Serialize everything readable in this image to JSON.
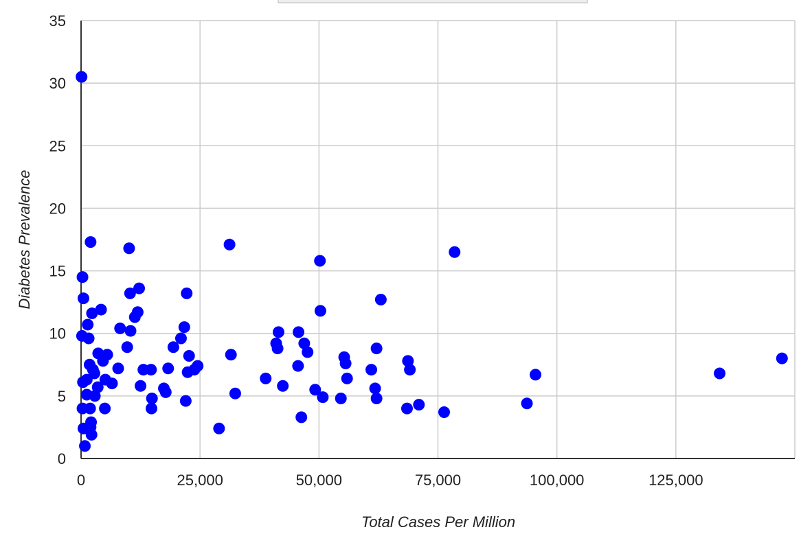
{
  "chart_data": {
    "type": "scatter",
    "title": "",
    "xlabel": "Total Cases Per Million",
    "ylabel": "Diabetes Prevalence",
    "xlim": [
      0,
      150000
    ],
    "ylim": [
      0,
      35
    ],
    "x_ticks": [
      0,
      25000,
      50000,
      75000,
      100000,
      125000
    ],
    "x_tick_labels": [
      "0",
      "25,000",
      "50,000",
      "75,000",
      "100,000",
      "125,000"
    ],
    "y_ticks": [
      0,
      5,
      10,
      15,
      20,
      25,
      30,
      35
    ],
    "y_tick_labels": [
      "0",
      "5",
      "10",
      "15",
      "20",
      "25",
      "30",
      "35"
    ],
    "grid": true,
    "legend": "none",
    "colors": {
      "points": "#0000ff",
      "grid": "#cccccc",
      "axis": "#333333"
    },
    "series": [
      {
        "points": [
          [
            100,
            30.5
          ],
          [
            300,
            14.5
          ],
          [
            500,
            12.8
          ],
          [
            200,
            9.8
          ],
          [
            400,
            6.1
          ],
          [
            300,
            4.0
          ],
          [
            800,
            1.0
          ],
          [
            500,
            2.4
          ],
          [
            1200,
            6.3
          ],
          [
            1200,
            5.1
          ],
          [
            1400,
            10.7
          ],
          [
            1600,
            9.6
          ],
          [
            1800,
            7.5
          ],
          [
            1900,
            4.0
          ],
          [
            2000,
            2.5
          ],
          [
            2200,
            1.9
          ],
          [
            2100,
            2.9
          ],
          [
            2000,
            17.3
          ],
          [
            2300,
            11.6
          ],
          [
            2500,
            7.1
          ],
          [
            2800,
            6.8
          ],
          [
            2900,
            5.0
          ],
          [
            3500,
            5.7
          ],
          [
            3600,
            8.4
          ],
          [
            4200,
            11.9
          ],
          [
            4600,
            7.8
          ],
          [
            5100,
            6.3
          ],
          [
            5500,
            8.3
          ],
          [
            5000,
            4.0
          ],
          [
            6500,
            6.0
          ],
          [
            7800,
            7.2
          ],
          [
            8200,
            10.4
          ],
          [
            9700,
            8.9
          ],
          [
            10100,
            16.8
          ],
          [
            10300,
            13.2
          ],
          [
            10400,
            10.2
          ],
          [
            11300,
            11.3
          ],
          [
            11900,
            11.7
          ],
          [
            12200,
            13.6
          ],
          [
            12500,
            5.8
          ],
          [
            13100,
            7.1
          ],
          [
            14700,
            7.1
          ],
          [
            14900,
            4.8
          ],
          [
            14800,
            4.0
          ],
          [
            17400,
            5.6
          ],
          [
            17800,
            5.3
          ],
          [
            18300,
            7.2
          ],
          [
            19400,
            8.9
          ],
          [
            21000,
            9.6
          ],
          [
            21700,
            10.5
          ],
          [
            22200,
            13.2
          ],
          [
            22000,
            4.6
          ],
          [
            22400,
            6.9
          ],
          [
            22700,
            8.2
          ],
          [
            23800,
            7.1
          ],
          [
            24500,
            7.4
          ],
          [
            29000,
            2.4
          ],
          [
            31200,
            17.1
          ],
          [
            31500,
            8.3
          ],
          [
            32400,
            5.2
          ],
          [
            38800,
            6.4
          ],
          [
            41000,
            9.2
          ],
          [
            41300,
            8.8
          ],
          [
            41500,
            10.1
          ],
          [
            42400,
            5.8
          ],
          [
            45600,
            7.4
          ],
          [
            45700,
            10.1
          ],
          [
            46300,
            3.3
          ],
          [
            46900,
            9.2
          ],
          [
            47600,
            8.5
          ],
          [
            49200,
            5.5
          ],
          [
            50200,
            15.8
          ],
          [
            50300,
            11.8
          ],
          [
            50800,
            4.9
          ],
          [
            54600,
            4.8
          ],
          [
            55300,
            8.1
          ],
          [
            55600,
            7.6
          ],
          [
            55900,
            6.4
          ],
          [
            61000,
            7.1
          ],
          [
            61800,
            5.6
          ],
          [
            62100,
            8.8
          ],
          [
            62100,
            4.8
          ],
          [
            63000,
            12.7
          ],
          [
            68500,
            4.0
          ],
          [
            68700,
            7.8
          ],
          [
            69100,
            7.1
          ],
          [
            71000,
            4.3
          ],
          [
            76300,
            3.7
          ],
          [
            78500,
            16.5
          ],
          [
            93700,
            4.4
          ],
          [
            95500,
            6.7
          ],
          [
            134200,
            6.8
          ],
          [
            147300,
            8.0
          ]
        ]
      }
    ]
  }
}
